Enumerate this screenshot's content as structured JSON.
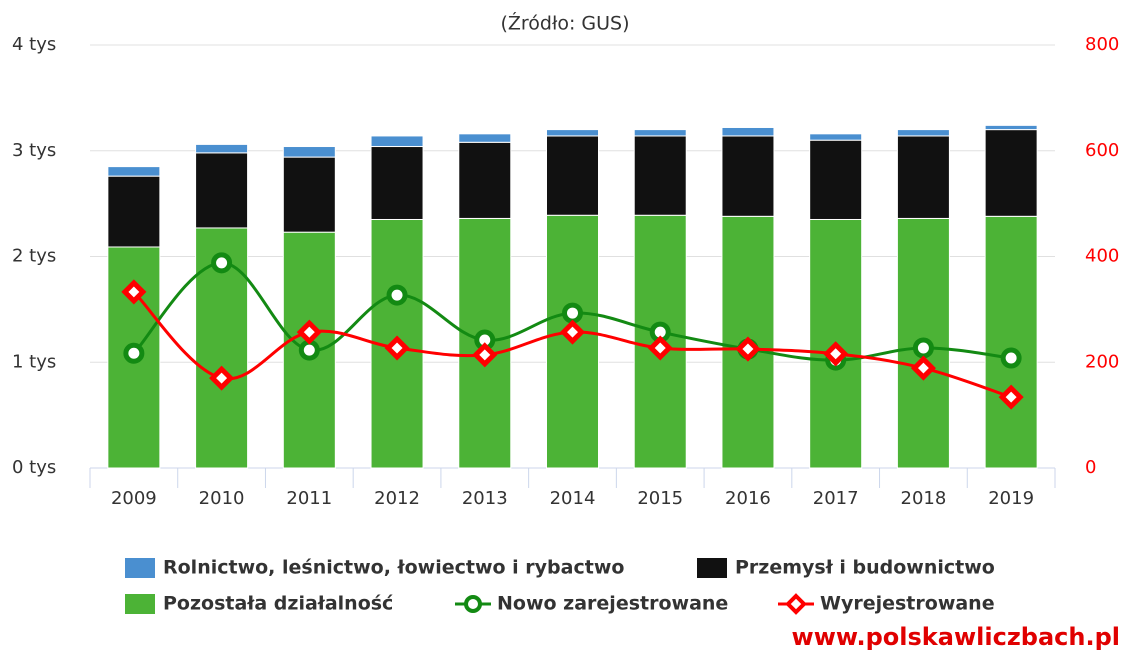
{
  "chart_data": {
    "type": "bar",
    "title": "(Źródło: GUS)",
    "watermark": "www.polskawliczbach.pl",
    "categories": [
      "2009",
      "2010",
      "2011",
      "2012",
      "2013",
      "2014",
      "2015",
      "2016",
      "2017",
      "2018",
      "2019"
    ],
    "ylim": [
      0,
      4000
    ],
    "yticks": [
      {
        "value": 0,
        "label": "0 tys"
      },
      {
        "value": 1000,
        "label": "1 tys"
      },
      {
        "value": 2000,
        "label": "2 tys"
      },
      {
        "value": 3000,
        "label": "3 tys"
      },
      {
        "value": 4000,
        "label": "4 tys"
      }
    ],
    "y2lim": [
      0,
      800
    ],
    "y2ticks": [
      0,
      200,
      400,
      600,
      800
    ],
    "grid": true,
    "stacked": true,
    "series": [
      {
        "name": "Rolnictwo, leśnictwo, łowiectwo i rybactwo",
        "color": "#4a8fd0",
        "type": "bar",
        "values": [
          90,
          80,
          100,
          100,
          80,
          60,
          60,
          80,
          60,
          60,
          40
        ]
      },
      {
        "name": "Przemysł i budownictwo",
        "color": "#111111",
        "type": "bar",
        "values": [
          670,
          710,
          710,
          690,
          720,
          750,
          750,
          760,
          750,
          780,
          820
        ]
      },
      {
        "name": "Pozostała działalność",
        "color": "#4cb336",
        "type": "bar",
        "values": [
          2090,
          2270,
          2230,
          2350,
          2360,
          2390,
          2390,
          2380,
          2350,
          2360,
          2380
        ]
      },
      {
        "name": "Nowo zarejestrowane",
        "color": "#138a13",
        "type": "line",
        "axis": "y2",
        "values": [
          217,
          388,
          223,
          327,
          242,
          293,
          257,
          225,
          204,
          227,
          208
        ]
      },
      {
        "name": "Wyrejestrowane",
        "color": "#ff0000",
        "type": "line",
        "axis": "y2",
        "values": [
          333,
          170,
          257,
          227,
          214,
          257,
          227,
          225,
          216,
          189,
          134
        ]
      }
    ]
  }
}
